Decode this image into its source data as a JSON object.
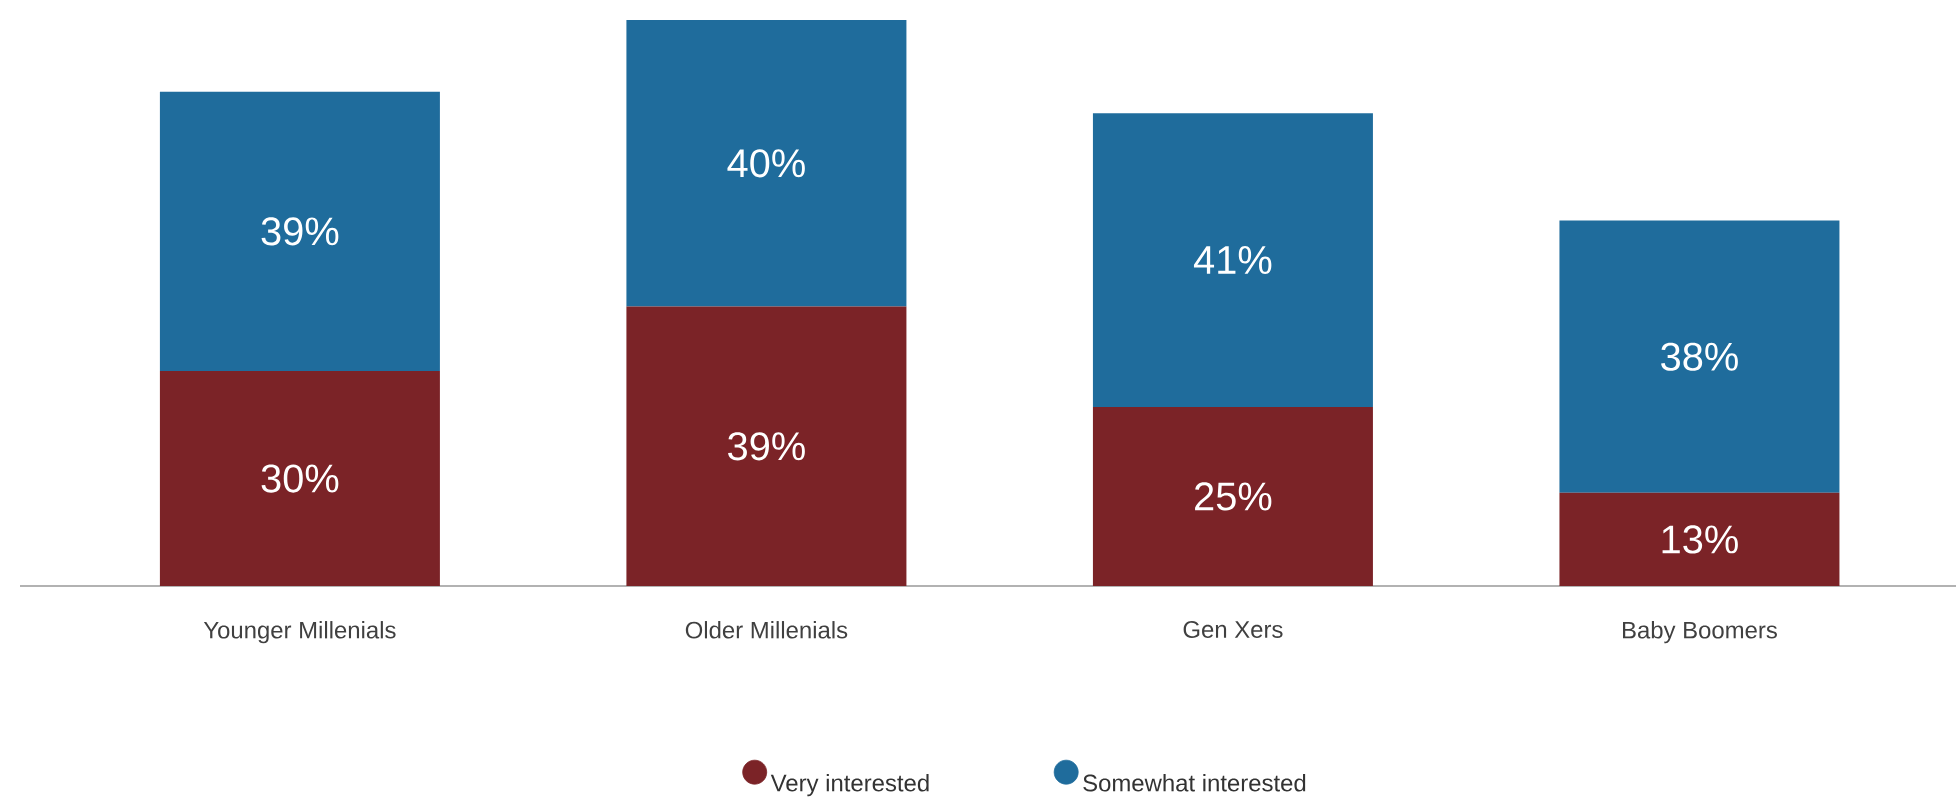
{
  "chart_data": {
    "type": "bar",
    "stacked": true,
    "categories": [
      "Younger Millenials",
      "Older Millenials",
      "Gen Xers",
      "Baby Boomers"
    ],
    "series": [
      {
        "name": "Very interested",
        "color": "#7b2327",
        "values": [
          30,
          39,
          25,
          13
        ],
        "value_labels": [
          "30%",
          "39%",
          "25%",
          "13%"
        ]
      },
      {
        "name": "Somewhat interested",
        "color": "#1f6c9c",
        "values": [
          39,
          40,
          41,
          38
        ],
        "value_labels": [
          "39%",
          "40%",
          "41%",
          "38%"
        ]
      }
    ],
    "legend": "bottom"
  }
}
